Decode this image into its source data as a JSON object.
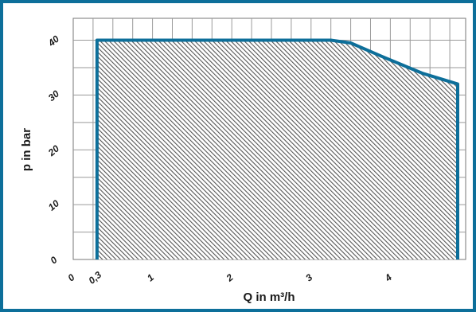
{
  "chart_data": {
    "type": "area",
    "xlabel": "Q in m³/h",
    "ylabel": "p in bar",
    "xlim": [
      0,
      4.95
    ],
    "ylim": [
      0,
      44
    ],
    "x_ticks": [
      {
        "value": 0,
        "label": "0"
      },
      {
        "value": 0.3,
        "label": "0,3"
      },
      {
        "value": 1,
        "label": "1"
      },
      {
        "value": 2,
        "label": "2"
      },
      {
        "value": 3,
        "label": "3"
      },
      {
        "value": 4,
        "label": "4"
      }
    ],
    "y_ticks": [
      {
        "value": 0,
        "label": "0"
      },
      {
        "value": 10,
        "label": "10"
      },
      {
        "value": 20,
        "label": "20"
      },
      {
        "value": 30,
        "label": "30"
      },
      {
        "value": 40,
        "label": "40"
      }
    ],
    "grid": true,
    "series": [
      {
        "x": [
          0.3,
          0.3,
          3.25,
          3.5,
          3.9,
          4.4,
          4.85,
          4.85
        ],
        "y": [
          0,
          40,
          40,
          39.5,
          37,
          34,
          32,
          0
        ]
      }
    ],
    "colors": {
      "outline": "#0d6f9a",
      "hatch": "#555555",
      "grid": "#9a9a9a",
      "border": "#0d6f9a"
    }
  }
}
